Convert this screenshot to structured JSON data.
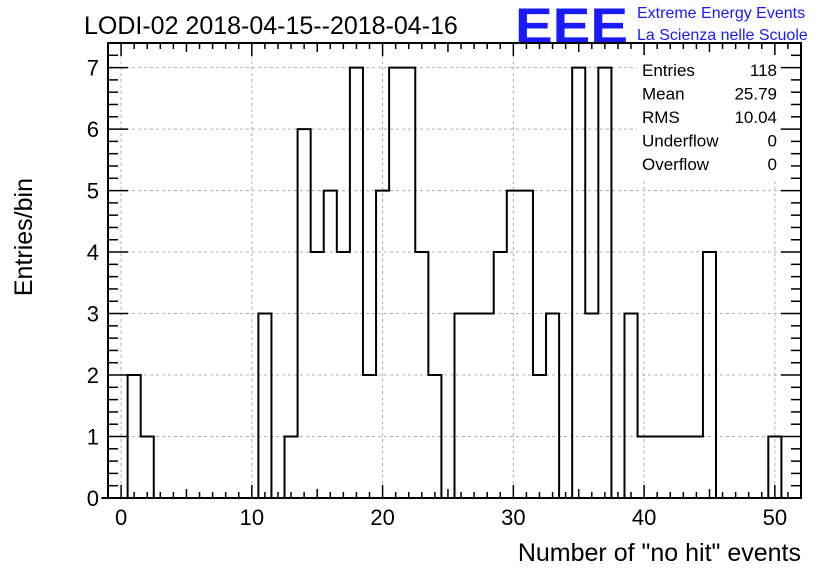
{
  "header": {
    "title": "LODI-02 2018-04-15--2018-04-16",
    "logo_text": "EEE",
    "logo_line1": "Extreme Energy Events",
    "logo_line2": "La Scienza nelle Scuole"
  },
  "stats": [
    {
      "label": "Entries",
      "value": "118"
    },
    {
      "label": "Mean",
      "value": "25.79"
    },
    {
      "label": "RMS",
      "value": "10.04"
    },
    {
      "label": "Underflow",
      "value": "0"
    },
    {
      "label": "Overflow",
      "value": "0"
    }
  ],
  "colors": {
    "logo": "#1a1aff",
    "line": "#000000",
    "grid": "#b0b0b0"
  },
  "chart_data": {
    "type": "bar",
    "histogram": true,
    "xlabel": "Number of \"no hit\" events",
    "ylabel": "Entries/bin",
    "xlim": [
      -1,
      52
    ],
    "ylim": [
      0,
      7.4
    ],
    "grid": true,
    "legend": "top-right",
    "bin_width": 1,
    "x": [
      1,
      2,
      11,
      13,
      14,
      15,
      16,
      17,
      18,
      19,
      20,
      21,
      22,
      23,
      24,
      26,
      27,
      28,
      29,
      30,
      31,
      32,
      33,
      35,
      36,
      37,
      39,
      40,
      41,
      42,
      43,
      44,
      45,
      50
    ],
    "values": [
      2,
      1,
      3,
      1,
      6,
      4,
      5,
      4,
      7,
      2,
      5,
      7,
      7,
      4,
      2,
      3,
      3,
      3,
      4,
      5,
      5,
      2,
      3,
      7,
      3,
      7,
      3,
      1,
      1,
      1,
      1,
      1,
      4,
      1
    ],
    "xticks": [
      0,
      10,
      20,
      30,
      40,
      50
    ],
    "yticks": [
      0,
      1,
      2,
      3,
      4,
      5,
      6,
      7
    ]
  }
}
